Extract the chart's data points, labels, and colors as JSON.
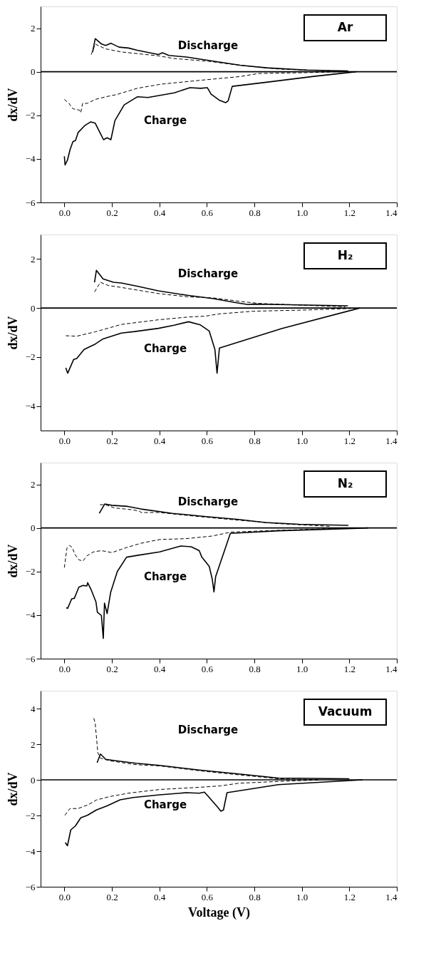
{
  "chart_data": [
    {
      "type": "line",
      "title": "Ar",
      "ylabel": "dx/dV",
      "xlim": [
        -0.1,
        1.4
      ],
      "ylim": [
        -6,
        3
      ],
      "xticks": [
        {
          "value": 0,
          "label": "0.0"
        },
        {
          "value": 0.2,
          "label": "0.2"
        },
        {
          "value": 0.4,
          "label": "0.4"
        },
        {
          "value": 0.6,
          "label": "0.6"
        },
        {
          "value": 0.8,
          "label": "0.8"
        },
        {
          "value": 1,
          "label": "1.0"
        },
        {
          "value": 1.2,
          "label": "1.2"
        },
        {
          "value": 1.4,
          "label": "1.4"
        }
      ],
      "yticks": [
        -6,
        -4,
        -2,
        0,
        2
      ],
      "ref_lines": [
        {
          "axis": "y",
          "value": 0,
          "color": "#000000",
          "line_style": "solid"
        }
      ],
      "annotations": [
        "Discharge",
        "Charge"
      ],
      "series": [
        {
          "color": "#000000",
          "line_style": "solid",
          "x": [
            0.119,
            0.13,
            0.157,
            0.174,
            0.196,
            0.23,
            0.27,
            0.307,
            0.396,
            0.413,
            0.44,
            0.52,
            0.607,
            0.74,
            0.85,
            1.02,
            1.195
          ],
          "values": [
            0.9,
            1.52,
            1.27,
            1.21,
            1.31,
            1.13,
            1.09,
            0.99,
            0.79,
            0.87,
            0.75,
            0.67,
            0.52,
            0.3,
            0.18,
            0.08,
            0.04
          ]
        },
        {
          "color": "#000000",
          "line_style": "dashed",
          "x": [
            0.113,
            0.13,
            0.174,
            0.24,
            0.396,
            0.46,
            0.607,
            0.74,
            0.907,
            1.13
          ],
          "values": [
            0.79,
            1.27,
            1.05,
            0.91,
            0.73,
            0.61,
            0.48,
            0.3,
            0.12,
            0.04
          ]
        },
        {
          "color": "#000000",
          "line_style": "solid",
          "x": [
            0.0,
            0.003,
            0.013,
            0.024,
            0.036,
            0.047,
            0.058,
            0.085,
            0.111,
            0.13,
            0.147,
            0.165,
            0.18,
            0.196,
            0.213,
            0.252,
            0.307,
            0.352,
            0.463,
            0.529,
            0.574,
            0.602,
            0.618,
            0.652,
            0.679,
            0.69,
            0.707,
            0.851,
            1.051,
            1.229
          ],
          "values": [
            -3.88,
            -4.28,
            -4.06,
            -3.58,
            -3.21,
            -3.15,
            -2.79,
            -2.48,
            -2.3,
            -2.36,
            -2.73,
            -3.12,
            -3.03,
            -3.12,
            -2.24,
            -1.52,
            -1.15,
            -1.18,
            -0.97,
            -0.73,
            -0.76,
            -0.73,
            -1.03,
            -1.3,
            -1.42,
            -1.33,
            -0.67,
            -0.48,
            -0.21,
            0
          ]
        },
        {
          "color": "#000000",
          "line_style": "dashed",
          "x": [
            0,
            0.019,
            0.036,
            0.063,
            0.069,
            0.077,
            0.097,
            0.13,
            0.174,
            0.219,
            0.307,
            0.407,
            0.574,
            0.74,
            0.818,
            1.018,
            1.16
          ],
          "values": [
            -1.27,
            -1.45,
            -1.7,
            -1.76,
            -1.88,
            -1.45,
            -1.45,
            -1.27,
            -1.15,
            -1.05,
            -0.76,
            -0.57,
            -0.39,
            -0.22,
            -0.08,
            -0.04,
            0
          ]
        }
      ]
    },
    {
      "type": "line",
      "title": "H₂",
      "ylabel": "dx/dV",
      "xlim": [
        -0.1,
        1.4
      ],
      "ylim": [
        -5,
        3
      ],
      "xticks": [
        {
          "value": 0,
          "label": "0.0"
        },
        {
          "value": 0.2,
          "label": "0.2"
        },
        {
          "value": 0.4,
          "label": "0.4"
        },
        {
          "value": 0.6,
          "label": "0.6"
        },
        {
          "value": 0.8,
          "label": "0.8"
        },
        {
          "value": 1,
          "label": "1.0"
        },
        {
          "value": 1.2,
          "label": "1.2"
        },
        {
          "value": 1.4,
          "label": "1.4"
        }
      ],
      "yticks": [
        -4,
        -2,
        0,
        2
      ],
      "ref_lines": [
        {
          "axis": "y",
          "value": 0,
          "color": "#000000",
          "line_style": "solid"
        }
      ],
      "annotations": [
        "Discharge",
        "Charge"
      ],
      "series": [
        {
          "color": "#000000",
          "line_style": "solid",
          "x": [
            0.127,
            0.135,
            0.163,
            0.207,
            0.24,
            0.307,
            0.396,
            0.518,
            0.629,
            0.717,
            0.773,
            0.795,
            0.906,
            1.194
          ],
          "values": [
            1.05,
            1.54,
            1.19,
            1.05,
            1.02,
            0.89,
            0.7,
            0.52,
            0.38,
            0.23,
            0.14,
            0.16,
            0.14,
            0.09
          ]
        },
        {
          "color": "#000000",
          "line_style": "dashed",
          "x": [
            0.127,
            0.152,
            0.185,
            0.24,
            0.396,
            0.518,
            0.629,
            0.74,
            0.817,
            1.017,
            1.183
          ],
          "values": [
            0.66,
            1.05,
            0.92,
            0.84,
            0.59,
            0.46,
            0.41,
            0.27,
            0.19,
            0.11,
            0.05
          ]
        },
        {
          "color": "#000000",
          "line_style": "solid",
          "x": [
            0.006,
            0.014,
            0.039,
            0.052,
            0.083,
            0.13,
            0.163,
            0.24,
            0.296,
            0.396,
            0.462,
            0.523,
            0.573,
            0.61,
            0.634,
            0.643,
            0.653,
            0.917,
            1.244
          ],
          "values": [
            -2.44,
            -2.66,
            -2.1,
            -2.06,
            -1.69,
            -1.47,
            -1.26,
            -1.02,
            -0.96,
            -0.83,
            -0.7,
            -0.56,
            -0.69,
            -0.94,
            -1.69,
            -2.66,
            -1.63,
            -0.83,
            0
          ]
        },
        {
          "color": "#000000",
          "line_style": "dashed",
          "x": [
            0.006,
            0.052,
            0.13,
            0.24,
            0.396,
            0.518,
            0.595,
            0.651,
            0.795,
            1.017,
            1.205
          ],
          "values": [
            -1.13,
            -1.15,
            -0.97,
            -0.67,
            -0.48,
            -0.37,
            -0.33,
            -0.24,
            -0.13,
            -0.08,
            -0.02
          ]
        }
      ]
    },
    {
      "type": "line",
      "title": "N₂",
      "ylabel": "dx/dV",
      "xlim": [
        -0.1,
        1.4
      ],
      "ylim": [
        -6,
        3
      ],
      "xticks": [
        {
          "value": 0,
          "label": "0.0"
        },
        {
          "value": 0.2,
          "label": "0.2"
        },
        {
          "value": 0.4,
          "label": "0.4"
        },
        {
          "value": 0.6,
          "label": "0.6"
        },
        {
          "value": 0.8,
          "label": "0.8"
        },
        {
          "value": 1,
          "label": "1.0"
        },
        {
          "value": 1.2,
          "label": "1.2"
        },
        {
          "value": 1.4,
          "label": "1.4"
        }
      ],
      "yticks": [
        -6,
        -4,
        -2,
        0,
        2
      ],
      "ref_lines": [
        {
          "axis": "y",
          "value": 0,
          "color": "#000000",
          "line_style": "solid"
        }
      ],
      "annotations": [
        "Discharge",
        "Charge"
      ],
      "series": [
        {
          "color": "#000000",
          "line_style": "solid",
          "x": [
            0.147,
            0.17,
            0.2,
            0.267,
            0.323,
            0.456,
            0.59,
            0.734,
            0.846,
            0.99,
            1.196
          ],
          "values": [
            0.67,
            1.1,
            1.04,
            0.99,
            0.87,
            0.67,
            0.53,
            0.39,
            0.25,
            0.17,
            0.12
          ]
        },
        {
          "color": "#000000",
          "line_style": "dashed",
          "x": [
            0.15,
            0.172,
            0.211,
            0.256,
            0.29,
            0.317,
            0.323,
            0.401,
            0.523,
            0.679,
            0.9,
            1.124
          ],
          "values": [
            1.07,
            1.07,
            0.92,
            0.87,
            0.83,
            0.77,
            0.71,
            0.71,
            0.57,
            0.41,
            0.2,
            0.07
          ]
        },
        {
          "color": "#000000",
          "line_style": "solid",
          "x": [
            0.008,
            0.014,
            0.031,
            0.042,
            0.061,
            0.078,
            0.095,
            0.098,
            0.113,
            0.133,
            0.139,
            0.156,
            0.164,
            0.169,
            0.18,
            0.195,
            0.223,
            0.262,
            0.312,
            0.401,
            0.49,
            0.534,
            0.568,
            0.579,
            0.61,
            0.623,
            0.63,
            0.637,
            0.699,
            0.901,
            1.28
          ],
          "values": [
            -3.66,
            -3.69,
            -3.25,
            -3.23,
            -2.72,
            -2.64,
            -2.66,
            -2.51,
            -2.84,
            -3.39,
            -3.87,
            -4.02,
            -5.07,
            -3.45,
            -3.93,
            -2.96,
            -2.0,
            -1.34,
            -1.25,
            -1.1,
            -0.83,
            -0.86,
            -1.04,
            -1.34,
            -1.76,
            -2.36,
            -2.94,
            -2.24,
            -0.25,
            -0.13,
            0
          ]
        },
        {
          "color": "#000000",
          "line_style": "dashed",
          "x": [
            0,
            0.011,
            0.022,
            0.033,
            0.045,
            0.061,
            0.078,
            0.095,
            0.122,
            0.156,
            0.2,
            0.256,
            0.323,
            0.401,
            0.512,
            0.623,
            0.701,
            0.846,
            1.013,
            1.157
          ],
          "values": [
            -1.82,
            -0.92,
            -0.8,
            -0.89,
            -1.22,
            -1.46,
            -1.52,
            -1.28,
            -1.1,
            -1.04,
            -1.13,
            -0.92,
            -0.7,
            -0.53,
            -0.49,
            -0.37,
            -0.19,
            -0.13,
            -0.07,
            -0.02
          ]
        }
      ]
    },
    {
      "type": "line",
      "title": "Vacuum",
      "xlabel": "Voltage (V)",
      "ylabel": "dx/dV",
      "xlim": [
        -0.1,
        1.4
      ],
      "ylim": [
        -6,
        5
      ],
      "xticks": [
        {
          "value": 0,
          "label": "0.0"
        },
        {
          "value": 0.2,
          "label": "0.2"
        },
        {
          "value": 0.4,
          "label": "0.4"
        },
        {
          "value": 0.6,
          "label": "0.6"
        },
        {
          "value": 0.8,
          "label": "0.8"
        },
        {
          "value": 1,
          "label": "1.0"
        },
        {
          "value": 1.2,
          "label": "1.2"
        },
        {
          "value": 1.4,
          "label": "1.4"
        }
      ],
      "yticks": [
        -6,
        -4,
        -2,
        0,
        2,
        4
      ],
      "ref_lines": [
        {
          "axis": "y",
          "value": 0,
          "color": "#000000",
          "line_style": "solid"
        }
      ],
      "annotations": [
        "Discharge",
        "Charge"
      ],
      "series": [
        {
          "color": "#000000",
          "line_style": "solid",
          "x": [
            0.138,
            0.152,
            0.174,
            0.235,
            0.302,
            0.402,
            0.568,
            0.735,
            0.901,
            1.2
          ],
          "values": [
            0.96,
            1.45,
            1.15,
            1.04,
            0.93,
            0.81,
            0.55,
            0.33,
            0.1,
            0.06
          ]
        },
        {
          "color": "#000000",
          "line_style": "dashed",
          "x": [
            0.124,
            0.13,
            0.141,
            0.152,
            0.191,
            0.302,
            0.402,
            0.568,
            0.735,
            0.901,
            1.068
          ],
          "values": [
            3.46,
            3.16,
            1.52,
            1.22,
            1.07,
            0.85,
            0.78,
            0.51,
            0.28,
            0.06,
            0.01
          ]
        },
        {
          "color": "#000000",
          "line_style": "solid",
          "x": [
            0.004,
            0.013,
            0.027,
            0.047,
            0.069,
            0.097,
            0.135,
            0.18,
            0.235,
            0.291,
            0.402,
            0.513,
            0.568,
            0.59,
            0.602,
            0.646,
            0.659,
            0.67,
            0.685,
            0.901,
            1.256
          ],
          "values": [
            -3.52,
            -3.7,
            -2.81,
            -2.58,
            -2.13,
            -1.99,
            -1.69,
            -1.46,
            -1.12,
            -0.99,
            -0.84,
            -0.72,
            -0.75,
            -0.69,
            -0.87,
            -1.54,
            -1.76,
            -1.69,
            -0.72,
            -0.27,
            0
          ]
        },
        {
          "color": "#000000",
          "line_style": "dashed",
          "x": [
            0.002,
            0.024,
            0.058,
            0.102,
            0.135,
            0.191,
            0.269,
            0.402,
            0.568,
            0.657,
            0.735,
            0.901,
            1.068
          ],
          "values": [
            -1.99,
            -1.61,
            -1.61,
            -1.39,
            -1.13,
            -0.94,
            -0.75,
            -0.54,
            -0.42,
            -0.34,
            -0.19,
            -0.09,
            -0.01
          ]
        }
      ]
    }
  ]
}
